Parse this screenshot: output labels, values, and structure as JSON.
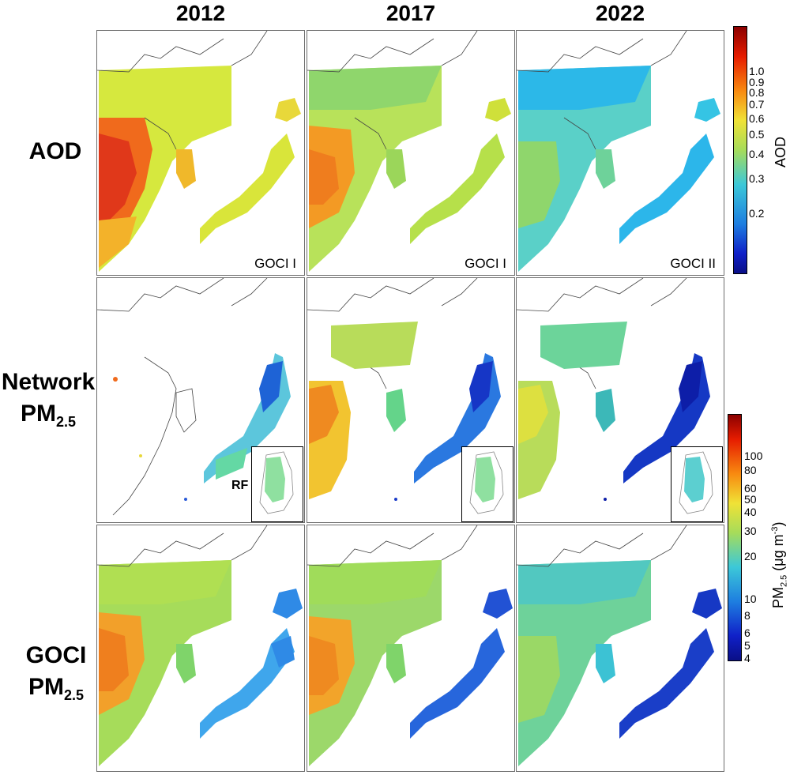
{
  "columns": [
    "2012",
    "2017",
    "2022"
  ],
  "rows": {
    "aod": "AOD",
    "network_line1": "Network",
    "network_pm": "PM",
    "network_sub": "2.5",
    "goci_line1": "GOCI",
    "goci_pm": "PM",
    "goci_sub": "2.5"
  },
  "sensors": [
    "GOCI I",
    "GOCI I",
    "GOCI II"
  ],
  "inset_label": "RF",
  "aod_colorbar": {
    "title": "AOD",
    "ticks": [
      "1.0",
      "0.9",
      "0.8",
      "0.7",
      "0.6",
      "0.5",
      "0.4",
      "0.3",
      "0.2"
    ]
  },
  "pm_colorbar": {
    "title_main": "PM",
    "title_sub": "2.5",
    "title_unit_open": " (μg m",
    "title_sup": "-3",
    "title_close": ")",
    "ticks": [
      "100",
      "80",
      "60",
      "50",
      "40",
      "30",
      "20",
      "10",
      "8",
      "6",
      "5",
      "4"
    ]
  },
  "colors": {
    "high": "#8b0000",
    "orange": "#f07f1c",
    "yellow": "#e8e23a",
    "green": "#8fd16a",
    "cyan": "#35c4e4",
    "blue": "#1e52d8",
    "low": "#0a0f86"
  }
}
